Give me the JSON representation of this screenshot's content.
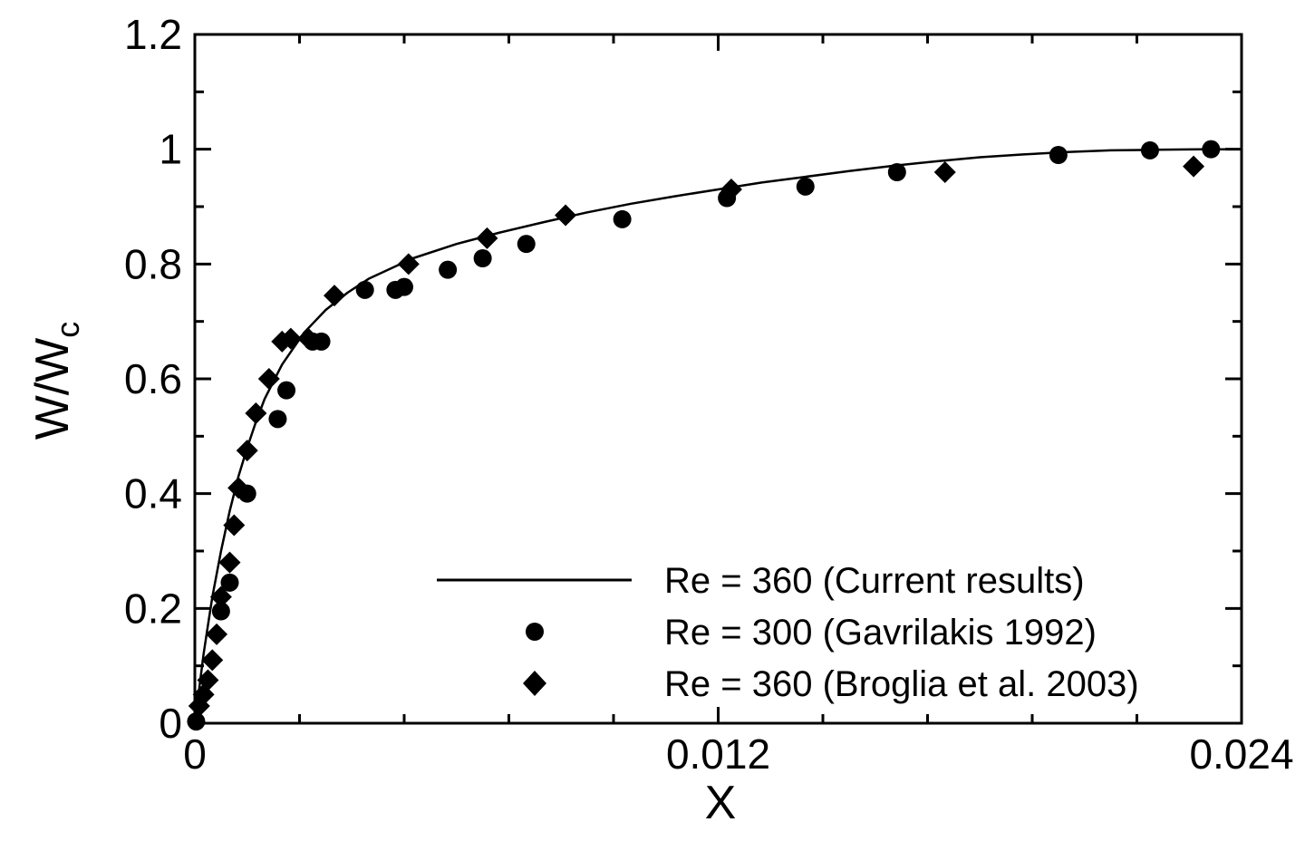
{
  "chart_data": {
    "type": "scatter",
    "title": "",
    "xlabel": "X",
    "ylabel": {
      "main": "W/W",
      "subscript": "c"
    },
    "xlim": [
      0,
      0.024
    ],
    "ylim": [
      0,
      1.2
    ],
    "x_ticks": [
      0,
      0.012,
      0.024
    ],
    "x_tick_labels": [
      "0",
      "0.012",
      "0.024"
    ],
    "x_minor_ticks": [
      0.0024,
      0.0048,
      0.0072,
      0.0096,
      0.0144,
      0.0168,
      0.0192,
      0.0216
    ],
    "y_ticks": [
      0,
      0.2,
      0.4,
      0.6,
      0.8,
      1.0,
      1.2
    ],
    "y_tick_labels": [
      "0",
      "0.2",
      "0.4",
      "0.6",
      "0.8",
      "1",
      "1.2"
    ],
    "y_minor_ticks": [
      0.1,
      0.3,
      0.5,
      0.7,
      0.9,
      1.1
    ],
    "grid": false,
    "legend_position": "bottom-right",
    "series": [
      {
        "name": "Re = 360 (Current results)",
        "style": "line",
        "color": "#000000",
        "x": [
          0,
          0.0001,
          0.0002,
          0.0003,
          0.0004,
          0.0005,
          0.0006,
          0.0007,
          0.0008,
          0.0009,
          0.001,
          0.0012,
          0.0014,
          0.0016,
          0.0018,
          0.002,
          0.0025,
          0.003,
          0.0035,
          0.004,
          0.005,
          0.006,
          0.007,
          0.008,
          0.009,
          0.01,
          0.011,
          0.012,
          0.013,
          0.014,
          0.015,
          0.016,
          0.017,
          0.018,
          0.019,
          0.02,
          0.021,
          0.022,
          0.023,
          0.024
        ],
        "y": [
          0,
          0.06,
          0.12,
          0.17,
          0.22,
          0.26,
          0.3,
          0.335,
          0.37,
          0.4,
          0.43,
          0.48,
          0.525,
          0.565,
          0.595,
          0.625,
          0.68,
          0.72,
          0.75,
          0.775,
          0.81,
          0.835,
          0.855,
          0.873,
          0.89,
          0.905,
          0.918,
          0.93,
          0.942,
          0.952,
          0.962,
          0.971,
          0.979,
          0.986,
          0.991,
          0.995,
          0.998,
          0.999,
          1.0,
          1.0
        ]
      },
      {
        "name": "Re = 300 (Gavrilakis 1992)",
        "style": "circle",
        "color": "#000000",
        "x": [
          3e-05,
          0.0006,
          0.0008,
          0.0012,
          0.0019,
          0.0021,
          0.0027,
          0.0029,
          0.0039,
          0.0046,
          0.0048,
          0.0058,
          0.0066,
          0.0076,
          0.0098,
          0.0122,
          0.014,
          0.0161,
          0.0198,
          0.0219,
          0.0233
        ],
        "y": [
          0.003,
          0.195,
          0.245,
          0.4,
          0.53,
          0.58,
          0.665,
          0.665,
          0.755,
          0.755,
          0.76,
          0.79,
          0.81,
          0.835,
          0.878,
          0.915,
          0.935,
          0.96,
          0.99,
          0.998,
          1.0
        ]
      },
      {
        "name": "Re = 360 (Broglia et al. 2003)",
        "style": "diamond",
        "color": "#000000",
        "x": [
          0.0001,
          0.0002,
          0.0003,
          0.0004,
          0.0005,
          0.0006,
          0.0008,
          0.0009,
          0.001,
          0.0012,
          0.0014,
          0.0017,
          0.002,
          0.0022,
          0.0026,
          0.0032,
          0.0049,
          0.0067,
          0.0085,
          0.0123,
          0.0172,
          0.0229
        ],
        "y": [
          0.03,
          0.05,
          0.075,
          0.11,
          0.155,
          0.22,
          0.28,
          0.345,
          0.41,
          0.475,
          0.54,
          0.6,
          0.665,
          0.67,
          0.67,
          0.745,
          0.8,
          0.845,
          0.885,
          0.93,
          0.96,
          0.97
        ]
      }
    ]
  }
}
